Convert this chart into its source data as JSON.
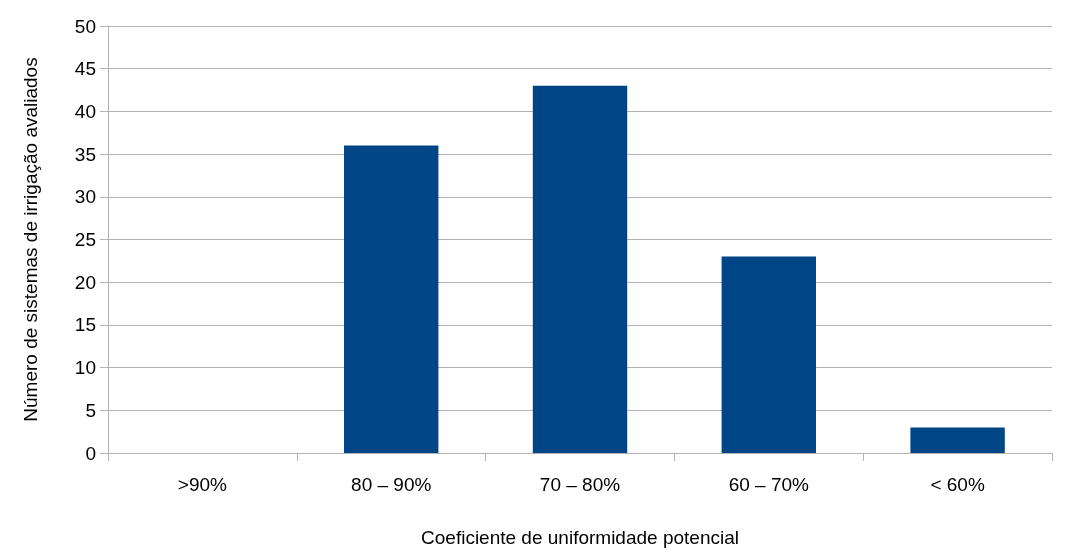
{
  "chart_data": {
    "type": "bar",
    "xlabel": "Coeficiente de uniformidade potencial",
    "ylabel": "Número de sistemas de irrigação avaliados",
    "categories": [
      ">90%",
      "80 – 90%",
      "70 – 80%",
      "60 – 70%",
      "< 60%"
    ],
    "values": [
      0,
      36,
      43,
      23,
      3
    ],
    "color": "#004586",
    "ylim": [
      0,
      50
    ],
    "yticks": [
      0,
      5,
      10,
      15,
      20,
      25,
      30,
      35,
      40,
      45,
      50
    ],
    "grid": "y"
  }
}
